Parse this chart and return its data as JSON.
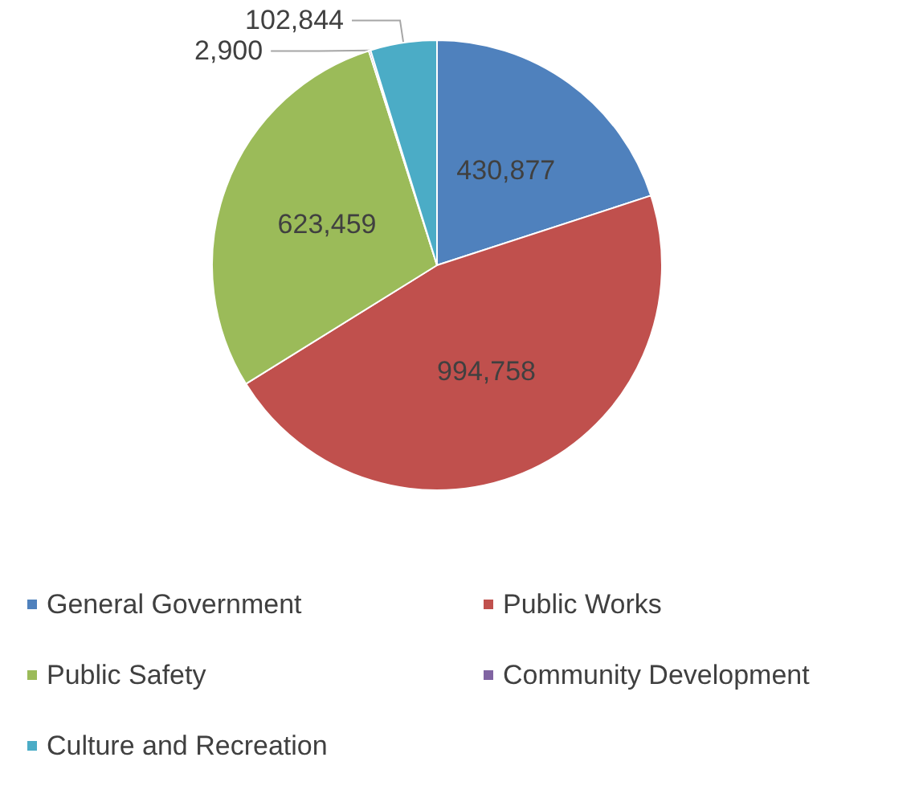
{
  "chart_data": {
    "type": "pie",
    "categories": [
      "General Government",
      "Public Works",
      "Public Safety",
      "Community Development",
      "Culture and Recreation"
    ],
    "values": [
      430877,
      994758,
      623459,
      2900,
      102844
    ],
    "colors": [
      "#4f81bd",
      "#c0504d",
      "#9bbb59",
      "#8064a2",
      "#4bacc6"
    ],
    "value_labels": [
      "430,877",
      "994,758",
      "623,459",
      "2,900",
      "102,844"
    ],
    "legend": "bottom"
  }
}
